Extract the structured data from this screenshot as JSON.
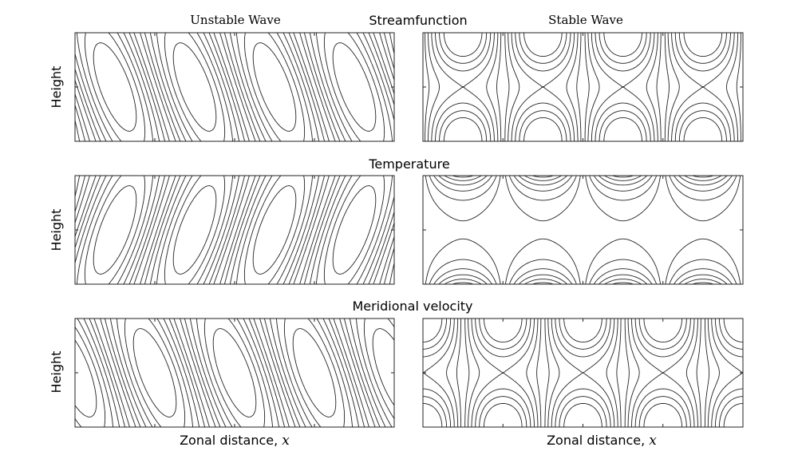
{
  "figure": {
    "column_titles": [
      "Unstable Wave",
      "Stable Wave"
    ],
    "panel_rows": [
      "Streamfunction",
      "Temperature",
      "Meridional velocity"
    ],
    "ylabel": "Height",
    "xlabel_text": "Zonal distance, ",
    "xlabel_var": "x"
  },
  "chart_data": [
    {
      "type": "contour",
      "row_title": "Streamfunction",
      "column_title": "Unstable Wave",
      "ylabel": "Height",
      "xlabel": "",
      "line_styles": [
        "solid (positive)",
        "dashed (negative)"
      ]
    },
    {
      "type": "contour",
      "row_title": "Streamfunction",
      "column_title": "Stable Wave",
      "ylabel": "",
      "xlabel": "",
      "line_styles": [
        "solid (positive)",
        "dashed (negative)"
      ]
    },
    {
      "type": "contour",
      "row_title": "Temperature",
      "column_title": "Unstable Wave",
      "ylabel": "Height",
      "xlabel": "",
      "line_styles": [
        "solid (positive)",
        "dashed (negative)"
      ]
    },
    {
      "type": "contour",
      "row_title": "Temperature",
      "column_title": "Stable Wave",
      "ylabel": "",
      "xlabel": "",
      "line_styles": [
        "solid (positive)",
        "dashed (negative)"
      ]
    },
    {
      "type": "contour",
      "row_title": "Meridional velocity",
      "column_title": "Unstable Wave",
      "ylabel": "Height",
      "xlabel": "Zonal distance, x",
      "line_styles": [
        "solid (positive)",
        "dashed (negative)"
      ]
    },
    {
      "type": "contour",
      "row_title": "Meridional velocity",
      "column_title": "Stable Wave",
      "ylabel": "",
      "xlabel": "Zonal distance, x",
      "line_styles": [
        "solid (positive)",
        "dashed (negative)"
      ]
    }
  ]
}
